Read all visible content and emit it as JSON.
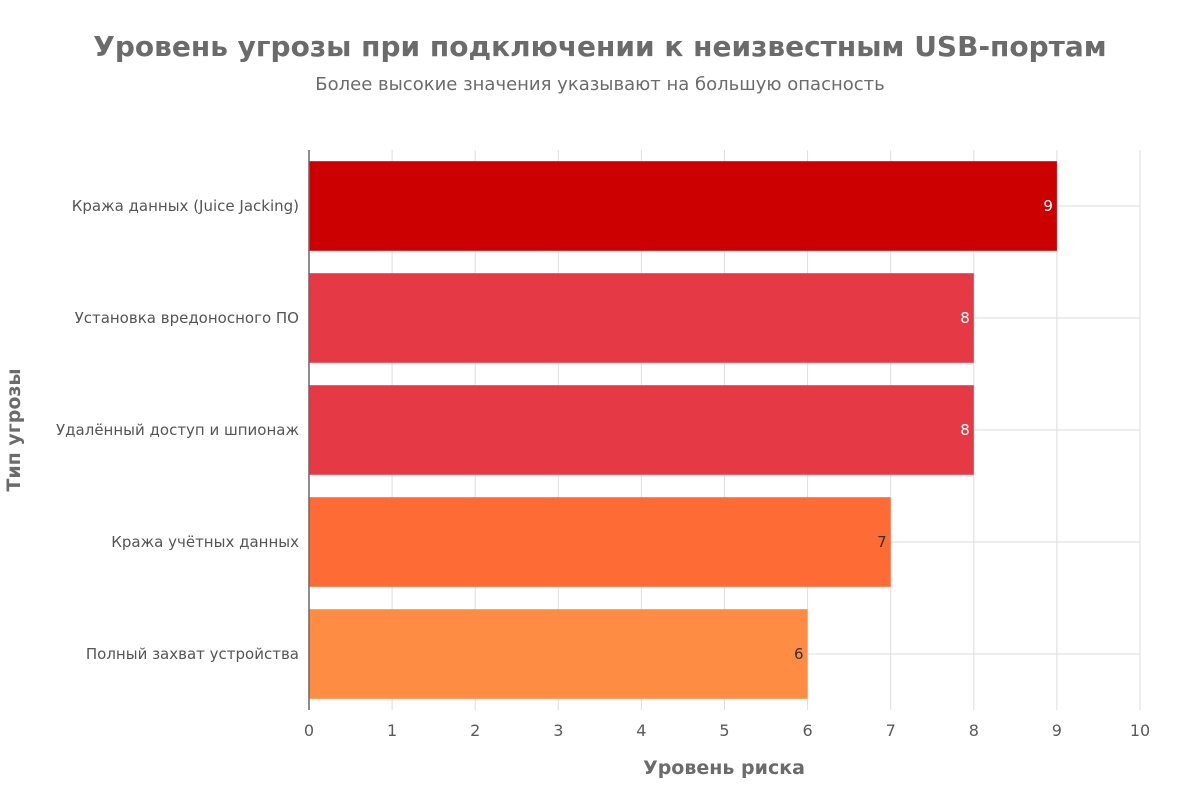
{
  "chart_data": {
    "type": "bar",
    "orientation": "horizontal",
    "title": "Уровень угрозы при подключении к неизвестным USB-портам",
    "subtitle": "Более высокие значения указывают на большую опасность",
    "xlabel": "Уровень риска",
    "ylabel": "Тип угрозы",
    "xlim": [
      0,
      10
    ],
    "xticks": [
      0,
      1,
      2,
      3,
      4,
      5,
      6,
      7,
      8,
      9,
      10
    ],
    "grid": true,
    "categories": [
      "Кража данных (Juice Jacking)",
      "Установка вредоносного ПО",
      "Удалённый доступ и шпионаж",
      "Кража учётных данных",
      "Полный захват устройства"
    ],
    "values": [
      9,
      8,
      8,
      7,
      6
    ],
    "colors": [
      "#cc0000",
      "#e63946",
      "#e63946",
      "#ff6b35",
      "#ff8c42"
    ],
    "label_colors": [
      "#ffffff",
      "#ffffff",
      "#ffffff",
      "#333333",
      "#333333"
    ]
  }
}
